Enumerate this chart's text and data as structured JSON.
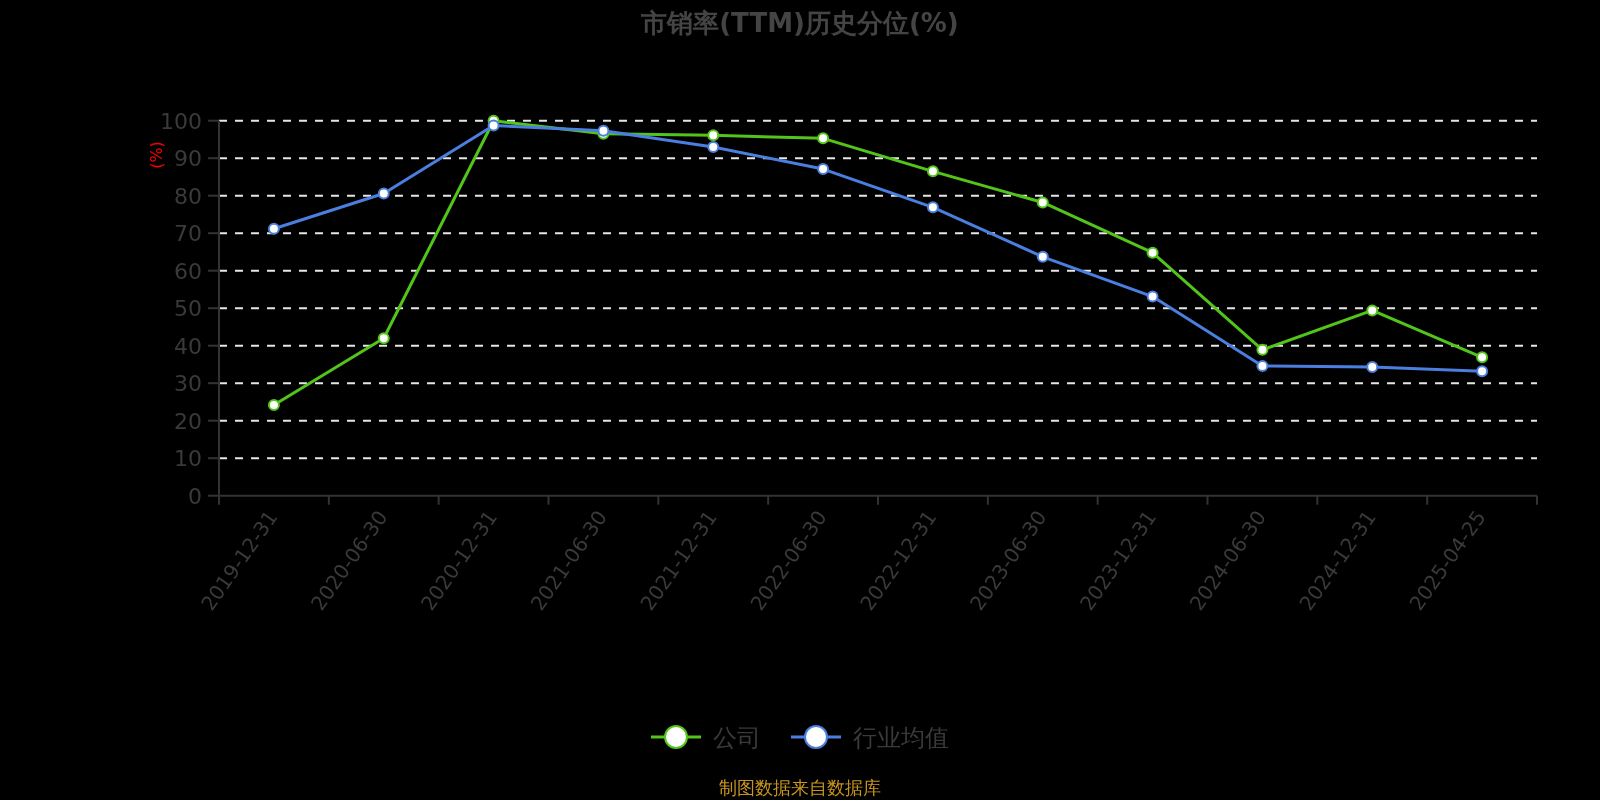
{
  "chart_data": {
    "type": "line",
    "title": "市销率(TTM)历史分位(%)",
    "ylabel": "(%)",
    "categories": [
      "2019-12-31",
      "2020-06-30",
      "2020-12-31",
      "2021-06-30",
      "2021-12-31",
      "2022-06-30",
      "2022-12-31",
      "2023-06-30",
      "2023-12-31",
      "2024-06-30",
      "2024-12-31",
      "2025-04-25"
    ],
    "series": [
      {
        "name": "公司",
        "color": "#52c41a",
        "values": [
          24.2,
          42.0,
          100,
          96.5,
          96.1,
          95.3,
          86.5,
          78.2,
          64.8,
          38.9,
          49.4,
          36.9
        ]
      },
      {
        "name": "行业均值",
        "color": "#4a7fe0",
        "values": [
          71.2,
          80.6,
          98.7,
          97.3,
          93.0,
          87.1,
          76.9,
          63.7,
          53.1,
          34.6,
          34.3,
          33.2
        ]
      }
    ],
    "ylim": [
      0,
      100
    ],
    "yticks": [
      0,
      10,
      20,
      30,
      40,
      50,
      60,
      70,
      80,
      90,
      100
    ],
    "grid": "y",
    "legend": "bottom",
    "marker": "circle",
    "line_style": "solid",
    "annotations": [
      "制图数据来自数据库"
    ]
  }
}
